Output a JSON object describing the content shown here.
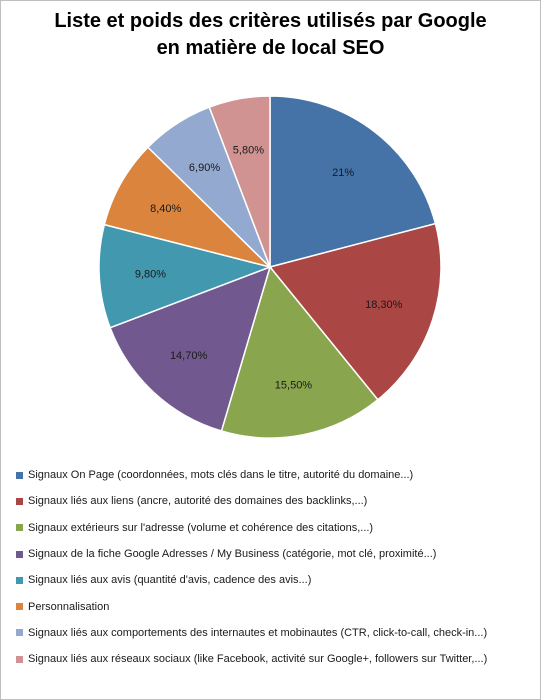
{
  "chart_data": {
    "type": "pie",
    "title_line1": "Liste et poids des critères utilisés par Google",
    "title_line2": "en matière de local SEO",
    "slices": [
      {
        "label": "Signaux On Page (coordonnées, mots clés dans le titre, autorité du domaine...)",
        "value": 21,
        "display": "21%",
        "color": "#4572a7"
      },
      {
        "label": "Signaux liés aux liens (ancre, autorité des domaines  des backlinks,...)",
        "value": 18.3,
        "display": "18,30%",
        "color": "#aa4643"
      },
      {
        "label": "Signaux extérieurs sur l'adresse (volume et cohérence des citations,...)",
        "value": 15.5,
        "display": "15,50%",
        "color": "#89a54e"
      },
      {
        "label": "Signaux de la fiche Google Adresses / My Business (catégorie, mot clé, proximité...)",
        "value": 14.7,
        "display": "14,70%",
        "color": "#71588f"
      },
      {
        "label": "Signaux liés aux avis (quantité d'avis, cadence des avis...)",
        "value": 9.8,
        "display": "9,80%",
        "color": "#4198af"
      },
      {
        "label": "Personnalisation",
        "value": 8.4,
        "display": "8,40%",
        "color": "#db843d"
      },
      {
        "label": "Signaux liés aux comportements  des internautes et mobinautes (CTR, click-to-call, check-in...)",
        "value": 6.9,
        "display": "6,90%",
        "color": "#93a9cf"
      },
      {
        "label": "Signaux liés aux réseaux sociaux (like Facebook, activité sur Google+, followers sur Twitter,...)",
        "value": 5.8,
        "display": "5,80%",
        "color": "#d19392"
      }
    ]
  }
}
